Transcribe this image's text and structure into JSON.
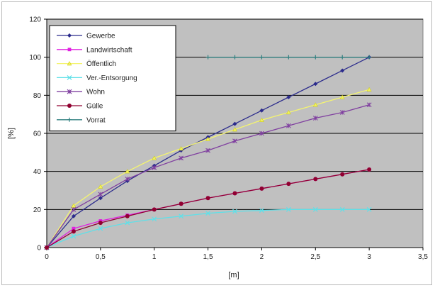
{
  "chart_data": {
    "type": "line",
    "xlabel": "[m]",
    "ylabel": "[%]",
    "xlim": [
      0,
      3.5
    ],
    "ylim": [
      0,
      120
    ],
    "x_ticks": [
      "0",
      "0,5",
      "1",
      "1,5",
      "2",
      "2,5",
      "3",
      "3,5"
    ],
    "y_ticks": [
      "0",
      "20",
      "40",
      "60",
      "80",
      "100",
      "120"
    ],
    "grid": "horizontal",
    "legend_position": "top-left",
    "plot_background": "#c0c0c0",
    "series": [
      {
        "name": "Gewerbe",
        "color": "#2b2b8c",
        "marker": "diamond",
        "x": [
          0,
          0.25,
          0.5,
          0.75,
          1,
          1.25,
          1.5,
          1.75,
          2,
          2.25,
          2.5,
          2.75,
          3
        ],
        "y": [
          0,
          16.5,
          26,
          35,
          43,
          51,
          58,
          65,
          72,
          79,
          86,
          93,
          100
        ]
      },
      {
        "name": "Landwirtschaft",
        "color": "#e020e0",
        "marker": "square",
        "x": [
          0,
          0.25,
          0.5,
          0.75,
          1,
          1.25,
          1.5,
          1.75,
          2,
          2.25,
          2.5,
          2.75,
          3
        ],
        "y": [
          0,
          10,
          14,
          17,
          20,
          23,
          26,
          28.5,
          31,
          33.5,
          36,
          38.5,
          41
        ]
      },
      {
        "name": "Öffentlich",
        "color": "#f0f060",
        "marker": "triangle",
        "x": [
          0,
          0.25,
          0.5,
          0.75,
          1,
          1.25,
          1.5,
          1.75,
          2,
          2.25,
          2.5,
          2.75,
          3
        ],
        "y": [
          0,
          22,
          32,
          40,
          47,
          52,
          57,
          62,
          67,
          71,
          75,
          79,
          83
        ]
      },
      {
        "name": "Ver.-Entsorgung",
        "color": "#60e0e8",
        "marker": "x",
        "x": [
          0,
          0.25,
          0.5,
          0.75,
          1,
          1.25,
          1.5,
          1.75,
          2,
          2.25,
          2.5,
          2.75,
          3
        ],
        "y": [
          0,
          6,
          10,
          13,
          15,
          16.5,
          18,
          19,
          19.5,
          20,
          20,
          20,
          20
        ]
      },
      {
        "name": "Wohn",
        "color": "#8040a0",
        "marker": "star",
        "x": [
          0,
          0.25,
          0.5,
          0.75,
          1,
          1.25,
          1.5,
          1.75,
          2,
          2.25,
          2.5,
          2.75,
          3
        ],
        "y": [
          0,
          20,
          28,
          36,
          42,
          47,
          51,
          56,
          60,
          64,
          68,
          71,
          75
        ]
      },
      {
        "name": "Gülle",
        "color": "#900030",
        "marker": "circle",
        "x": [
          0,
          0.25,
          0.5,
          0.75,
          1,
          1.25,
          1.5,
          1.75,
          2,
          2.25,
          2.5,
          2.75,
          3
        ],
        "y": [
          0,
          8.5,
          13,
          16.5,
          20,
          23,
          26,
          28.5,
          31,
          33.5,
          36,
          38.5,
          41
        ]
      },
      {
        "name": "Vorrat",
        "color": "#308080",
        "marker": "plus",
        "x": [
          1.5,
          1.75,
          2,
          2.25,
          2.5,
          2.75,
          3
        ],
        "y": [
          100,
          100,
          100,
          100,
          100,
          100,
          100
        ]
      }
    ]
  }
}
